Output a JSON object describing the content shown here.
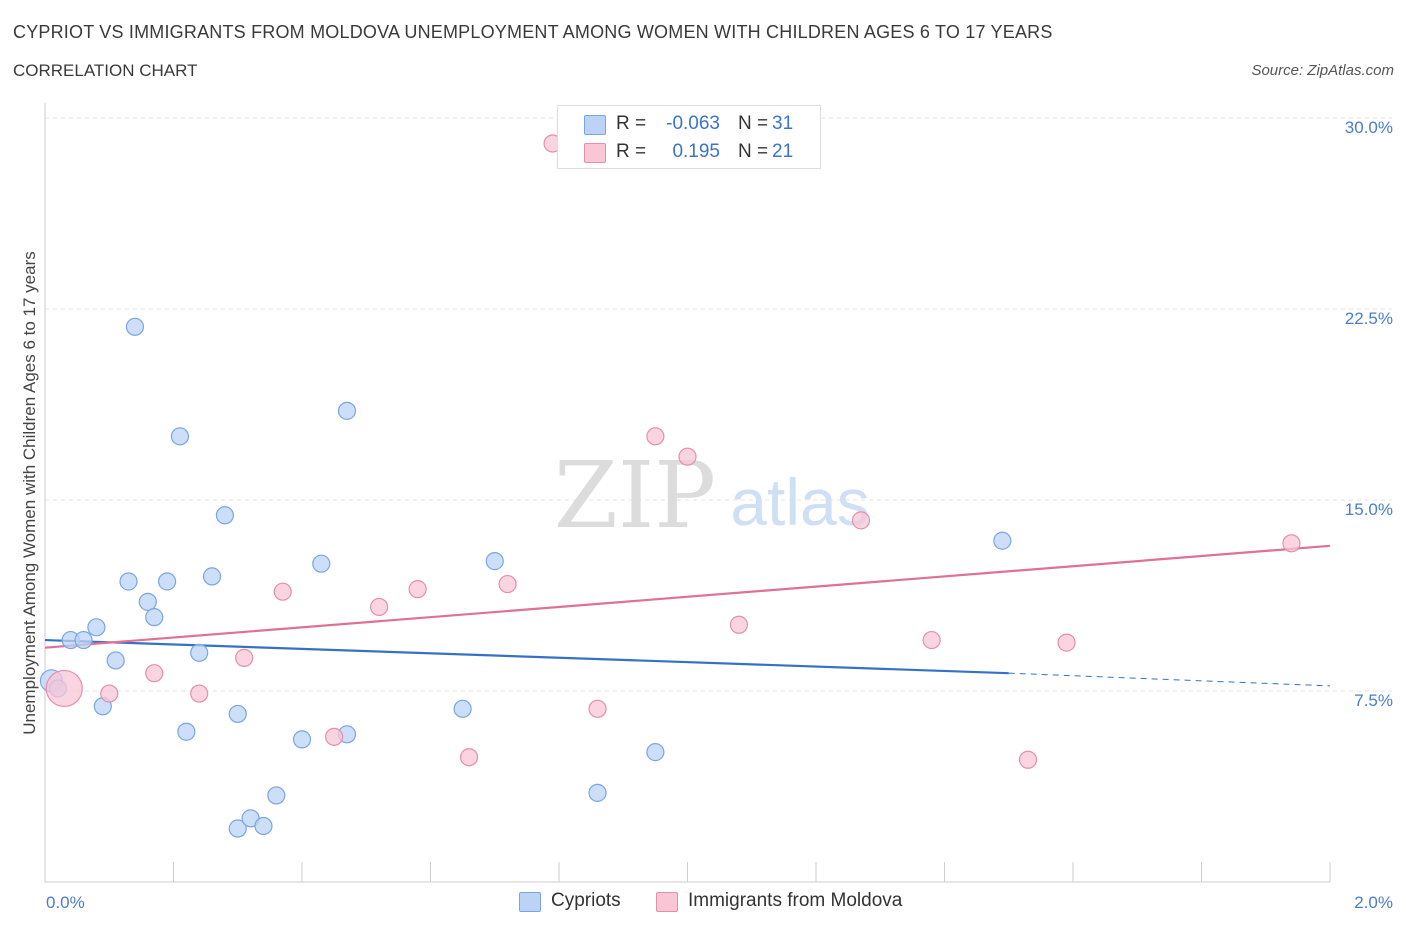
{
  "header": {
    "title": "CYPRIOT VS IMMIGRANTS FROM MOLDOVA UNEMPLOYMENT AMONG WOMEN WITH CHILDREN AGES 6 TO 17 YEARS",
    "subtitle": "CORRELATION CHART",
    "source": "Source: ZipAtlas.com"
  },
  "watermark": {
    "zip": "ZIP",
    "atlas": "atlas"
  },
  "legend_top": {
    "rows": [
      {
        "r_label": "R =",
        "r_value": "-0.063",
        "n_label": "N =",
        "n_value": "31"
      },
      {
        "r_label": "R =",
        "r_value": "0.195",
        "n_label": "N =",
        "n_value": "21"
      }
    ]
  },
  "legend_bottom": {
    "items": [
      "Cypriots",
      "Immigrants from Moldova"
    ]
  },
  "colors": {
    "blue_fill": "#bcd3f5",
    "blue_stroke": "#7aa6e0",
    "blue_line": "#3572c6",
    "pink_fill": "#f8c6d5",
    "pink_stroke": "#e58fab",
    "pink_line": "#e07098",
    "tick_text": "#4a7fc8",
    "grid": "#e3e3e3"
  },
  "chart_data": {
    "type": "scatter",
    "title": "CYPRIOT VS IMMIGRANTS FROM MOLDOVA UNEMPLOYMENT AMONG WOMEN WITH CHILDREN AGES 6 TO 17 YEARS",
    "xlabel": "",
    "ylabel": "Unemployment Among Women with Children Ages 6 to 17 years",
    "xlim": [
      0,
      2.0
    ],
    "ylim": [
      0,
      30.0
    ],
    "x_tick_labels": [
      "0.0%",
      "2.0%"
    ],
    "y_tick_labels": [
      "7.5%",
      "15.0%",
      "22.5%",
      "30.0%"
    ],
    "y_ticks": [
      7.5,
      15.0,
      22.5,
      30.0
    ],
    "grid": true,
    "legend_position": "top-center",
    "series": [
      {
        "name": "Cypriots",
        "color": "#bcd3f5",
        "points": [
          [
            0.01,
            7.9
          ],
          [
            0.02,
            7.6
          ],
          [
            0.04,
            9.5
          ],
          [
            0.06,
            9.5
          ],
          [
            0.08,
            10.0
          ],
          [
            0.09,
            6.9
          ],
          [
            0.11,
            8.7
          ],
          [
            0.13,
            11.8
          ],
          [
            0.14,
            21.8
          ],
          [
            0.16,
            11.0
          ],
          [
            0.17,
            10.4
          ],
          [
            0.19,
            11.8
          ],
          [
            0.21,
            17.5
          ],
          [
            0.22,
            5.9
          ],
          [
            0.24,
            9.0
          ],
          [
            0.26,
            12.0
          ],
          [
            0.28,
            14.4
          ],
          [
            0.3,
            2.1
          ],
          [
            0.3,
            6.6
          ],
          [
            0.32,
            2.5
          ],
          [
            0.34,
            2.2
          ],
          [
            0.36,
            3.4
          ],
          [
            0.4,
            5.6
          ],
          [
            0.43,
            12.5
          ],
          [
            0.47,
            18.5
          ],
          [
            0.47,
            5.8
          ],
          [
            0.65,
            6.8
          ],
          [
            0.7,
            12.6
          ],
          [
            0.86,
            3.5
          ],
          [
            0.95,
            5.1
          ],
          [
            1.49,
            13.4
          ]
        ],
        "trend": {
          "x": [
            0.0,
            1.5
          ],
          "y": [
            9.5,
            8.2
          ],
          "dashed_extension": {
            "x": [
              1.5,
              2.0
            ],
            "y": [
              8.2,
              7.7
            ]
          }
        }
      },
      {
        "name": "Immigrants from Moldova",
        "color": "#f8c6d5",
        "points": [
          [
            0.03,
            7.6
          ],
          [
            0.1,
            7.4
          ],
          [
            0.17,
            8.2
          ],
          [
            0.24,
            7.4
          ],
          [
            0.31,
            8.8
          ],
          [
            0.37,
            11.4
          ],
          [
            0.45,
            5.7
          ],
          [
            0.52,
            10.8
          ],
          [
            0.58,
            11.5
          ],
          [
            0.66,
            4.9
          ],
          [
            0.72,
            11.7
          ],
          [
            0.79,
            29.0
          ],
          [
            0.86,
            6.8
          ],
          [
            0.95,
            17.5
          ],
          [
            1.0,
            16.7
          ],
          [
            1.08,
            10.1
          ],
          [
            1.27,
            14.2
          ],
          [
            1.38,
            9.5
          ],
          [
            1.53,
            4.8
          ],
          [
            1.59,
            9.4
          ],
          [
            1.94,
            13.3
          ]
        ],
        "trend": {
          "x": [
            0.0,
            2.0
          ],
          "y": [
            9.2,
            13.2
          ]
        }
      }
    ]
  }
}
